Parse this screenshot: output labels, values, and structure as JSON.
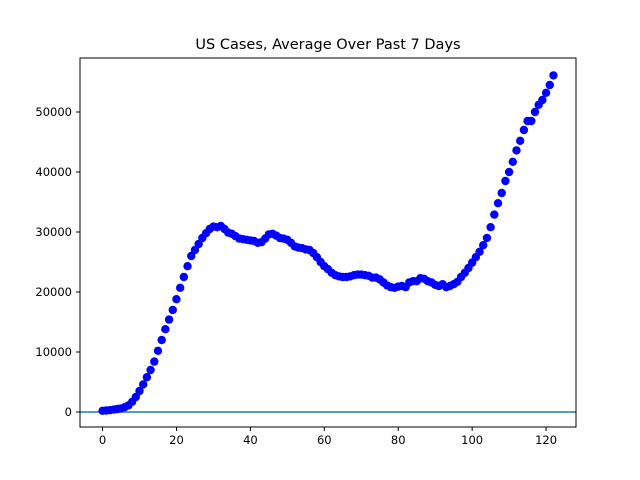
{
  "chart_data": {
    "type": "scatter",
    "title": "US Cases, Average Over Past 7 Days",
    "xlabel": "",
    "ylabel": "",
    "xlim": [
      -6.1,
      128.1
    ],
    "ylim": [
      -2500,
      59000
    ],
    "x_ticks": [
      0,
      20,
      40,
      60,
      80,
      100,
      120
    ],
    "y_ticks": [
      0,
      10000,
      20000,
      30000,
      40000,
      50000
    ],
    "grid": false,
    "marker_color": "#0000ff",
    "reference_line": {
      "y": 0,
      "color": "#1f77b4"
    },
    "series": [
      {
        "x": [
          0,
          1,
          2,
          3,
          4,
          5,
          6,
          7,
          8,
          9,
          10,
          11,
          12,
          13,
          14,
          15,
          16,
          17,
          18,
          19,
          20,
          21,
          22,
          23,
          24,
          25,
          26,
          27,
          28,
          29,
          30,
          31,
          32,
          33,
          34,
          35,
          36,
          37,
          38,
          39,
          40,
          41,
          42,
          43,
          44,
          45,
          46,
          47,
          48,
          49,
          50,
          51,
          52,
          53,
          54,
          55,
          56,
          57,
          58,
          59,
          60,
          61,
          62,
          63,
          64,
          65,
          66,
          67,
          68,
          69,
          70,
          71,
          72,
          73,
          74,
          75,
          76,
          77,
          78,
          79,
          80,
          81,
          82,
          83,
          84,
          85,
          86,
          87,
          88,
          89,
          90,
          91,
          92,
          93,
          94,
          95,
          96,
          97,
          98,
          99,
          100,
          101,
          102,
          103,
          104,
          105,
          106,
          107,
          108,
          109,
          110,
          111,
          112,
          113,
          114,
          115,
          116,
          117,
          118,
          119,
          120,
          121,
          122
        ],
        "y": [
          200,
          250,
          300,
          400,
          500,
          600,
          800,
          1100,
          1700,
          2500,
          3500,
          4600,
          5800,
          7000,
          8400,
          10200,
          12000,
          13800,
          15400,
          17000,
          18800,
          20700,
          22500,
          24300,
          26000,
          27000,
          28000,
          29000,
          29800,
          30500,
          30900,
          30800,
          31000,
          30500,
          29900,
          29700,
          29300,
          28900,
          28800,
          28700,
          28600,
          28500,
          28200,
          28300,
          28900,
          29600,
          29700,
          29400,
          29000,
          28900,
          28700,
          28200,
          27600,
          27400,
          27300,
          27100,
          27000,
          26500,
          25800,
          25000,
          24300,
          23800,
          23200,
          22800,
          22600,
          22500,
          22500,
          22600,
          22800,
          22900,
          22900,
          22800,
          22700,
          22400,
          22400,
          22100,
          21600,
          21100,
          20800,
          20700,
          20900,
          21000,
          20800,
          21600,
          21800,
          21800,
          22300,
          22200,
          21800,
          21600,
          21200,
          21000,
          21300,
          20800,
          21000,
          21300,
          21700,
          22500,
          23200,
          24000,
          24900,
          25800,
          26700,
          27800,
          29000,
          30800,
          32900,
          34800,
          36500,
          38500,
          40000,
          41700,
          43600,
          45200,
          47000,
          48500,
          48500,
          50000,
          51200,
          52000,
          53200,
          54500,
          56100
        ]
      }
    ]
  }
}
